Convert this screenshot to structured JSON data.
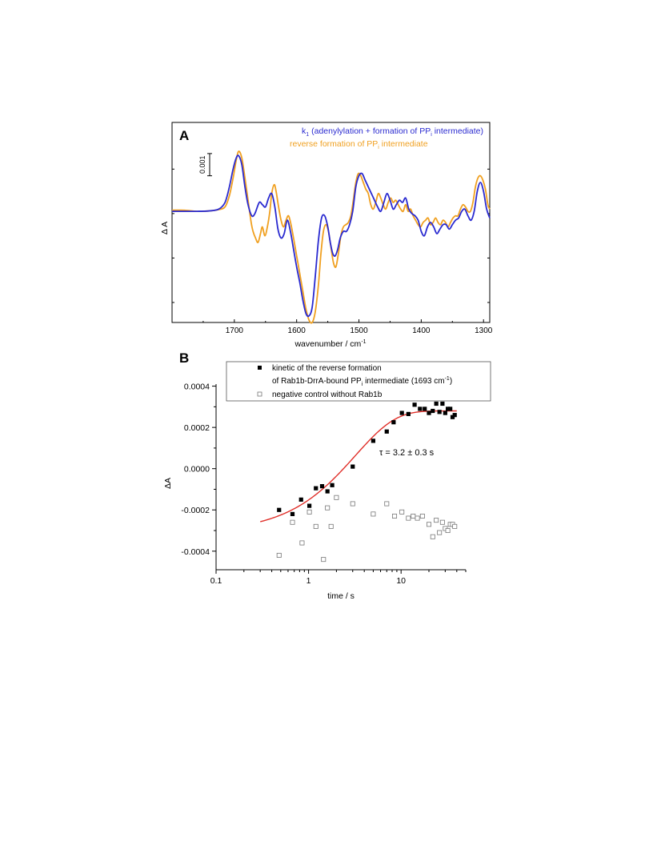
{
  "chart_data": [
    {
      "panel_label": "A",
      "type": "line",
      "xlabel": "wavenumber / cm",
      "xlabel_sup": "-1",
      "ylabel": "Δ A",
      "xlim": [
        1800,
        1290
      ],
      "x_reversed": true,
      "ylim": [
        -0.0049,
        0.0041
      ],
      "xticks": [
        1700,
        1600,
        1500,
        1400,
        1300
      ],
      "scale_bar": {
        "label": "0.001",
        "value": 0.001,
        "from": 0.0027,
        "to": 0.0017
      },
      "legend_position": "top-right",
      "legend": [
        {
          "text": "k",
          "sub": "1",
          "rest": " (adenylylation + formation of PP",
          "sub2": "i",
          "rest2": " intermediate)",
          "color": "#2a2ad0"
        },
        {
          "text": "reverse formation of PP",
          "sub": "i",
          "rest": " intermediate",
          "color": "#f0a020"
        }
      ],
      "series": [
        {
          "color": "#2a2ad0",
          "x": [
            1800,
            1780,
            1760,
            1740,
            1725,
            1715,
            1708,
            1702,
            1697,
            1693,
            1688,
            1683,
            1678,
            1672,
            1667,
            1660,
            1655,
            1650,
            1645,
            1640,
            1635,
            1630,
            1625,
            1620,
            1615,
            1610,
            1605,
            1600,
            1595,
            1590,
            1585,
            1580,
            1575,
            1570,
            1565,
            1560,
            1555,
            1550,
            1546,
            1542,
            1538,
            1534,
            1530,
            1525,
            1520,
            1515,
            1510,
            1505,
            1500,
            1495,
            1490,
            1485,
            1480,
            1475,
            1470,
            1465,
            1460,
            1455,
            1450,
            1445,
            1440,
            1435,
            1430,
            1425,
            1420,
            1415,
            1410,
            1405,
            1400,
            1395,
            1390,
            1385,
            1380,
            1375,
            1370,
            1365,
            1360,
            1355,
            1350,
            1345,
            1340,
            1335,
            1330,
            1325,
            1320,
            1315,
            1310,
            1305,
            1300,
            1295,
            1290
          ],
          "y": [
            0.0001,
            0.0001,
            0.0001,
            0.00012,
            0.0002,
            0.0005,
            0.0012,
            0.002,
            0.0025,
            0.0026,
            0.0022,
            0.0012,
            0.0004,
            -0.0001,
            0,
            0.0005,
            0.0004,
            0.0003,
            0.0007,
            0.0009,
            0.0003,
            -0.0007,
            -0.0011,
            -0.0009,
            -0.0003,
            -0.0008,
            -0.0016,
            -0.0024,
            -0.0031,
            -0.0039,
            -0.0045,
            -0.0046,
            -0.0042,
            -0.0028,
            -0.0012,
            -0.0002,
            -0.0001,
            -0.0006,
            -0.0013,
            -0.0018,
            -0.0019,
            -0.0016,
            -0.0011,
            -0.0008,
            -0.0008,
            -0.0005,
            0.0001,
            0.0012,
            0.0017,
            0.0018,
            0.0015,
            0.0012,
            0.0009,
            0.0006,
            0.0003,
            0.0001,
            0.0005,
            0.0009,
            0.0006,
            0.0002,
            0.0004,
            0.0006,
            0.0005,
            0.0007,
            0.0002,
            0,
            -0.0001,
            -0.0003,
            -0.0008,
            -0.001,
            -0.0006,
            -0.0004,
            -0.0006,
            -0.0009,
            -0.0007,
            -0.0005,
            -0.0005,
            -0.0007,
            -0.0005,
            -0.0003,
            -0.0002,
            0.0001,
            0.0002,
            -0.0001,
            -0.0003,
            0.0001,
            0.001,
            0.0014,
            0.001,
            0.0002,
            -0.0002
          ]
        },
        {
          "color": "#f0a020",
          "x": [
            1800,
            1780,
            1760,
            1740,
            1725,
            1715,
            1708,
            1702,
            1697,
            1693,
            1688,
            1683,
            1678,
            1673,
            1670,
            1666,
            1662,
            1658,
            1655,
            1651,
            1647,
            1643,
            1640,
            1636,
            1633,
            1629,
            1625,
            1621,
            1617,
            1613,
            1609,
            1605,
            1600,
            1595,
            1590,
            1585,
            1580,
            1575,
            1570,
            1565,
            1561,
            1557,
            1553,
            1549,
            1545,
            1541,
            1537,
            1533,
            1529,
            1525,
            1521,
            1517,
            1513,
            1509,
            1505,
            1501,
            1497,
            1493,
            1489,
            1485,
            1481,
            1477,
            1473,
            1469,
            1465,
            1461,
            1457,
            1453,
            1449,
            1445,
            1441,
            1437,
            1433,
            1429,
            1425,
            1421,
            1417,
            1413,
            1409,
            1405,
            1401,
            1397,
            1393,
            1389,
            1385,
            1381,
            1377,
            1373,
            1369,
            1365,
            1361,
            1357,
            1353,
            1349,
            1345,
            1341,
            1337,
            1333,
            1329,
            1325,
            1321,
            1317,
            1313,
            1309,
            1305,
            1301,
            1297,
            1293,
            1290
          ],
          "y": [
            0.00015,
            0.00015,
            0.0001,
            0.00012,
            0.00018,
            0.0003,
            0.0008,
            0.0016,
            0.0024,
            0.0028,
            0.0025,
            0.0016,
            0.0006,
            -0.0004,
            -0.0008,
            -0.0011,
            -0.0013,
            -0.0009,
            -0.0006,
            -0.001,
            -0.0006,
            0.0001,
            0.0009,
            0.0013,
            0.001,
            0.0003,
            -0.0003,
            -0.0006,
            -0.0003,
            -0.0001,
            -0.0005,
            -0.0011,
            -0.0019,
            -0.0027,
            -0.0035,
            -0.0043,
            -0.0048,
            -0.0049,
            -0.0044,
            -0.0032,
            -0.0018,
            -0.0008,
            -0.0005,
            -0.0008,
            -0.0015,
            -0.0022,
            -0.0024,
            -0.0018,
            -0.001,
            -0.0006,
            -0.0005,
            -0.0004,
            -0.0001,
            0.0006,
            0.0014,
            0.0018,
            0.0017,
            0.0014,
            0.0011,
            0.0009,
            0.0004,
            0.0002,
            0.0005,
            0.0009,
            0.0007,
            0.0004,
            0.0002,
            0.0005,
            0.0007,
            0.0005,
            0.0006,
            0.0004,
            0.0002,
            0.0001,
            0.0004,
            0.0001,
            0.0002,
            -0.0001,
            -0.0003,
            -0.0005,
            -0.0006,
            -0.0004,
            -0.0003,
            -0.0002,
            -0.0005,
            -0.0004,
            -0.0002,
            -0.0004,
            -0.0005,
            -0.0003,
            -0.0004,
            -0.0006,
            -0.0004,
            -0.0002,
            -0.0001,
            -0.0001,
            0.0002,
            0.0004,
            0.0003,
            0.0001,
            0.0001,
            0.0005,
            0.0012,
            0.0016,
            0.0017,
            0.0015,
            0.0011,
            0.0004,
            0.0002
          ]
        }
      ]
    },
    {
      "panel_label": "B",
      "type": "scatter",
      "xlabel": "time / s",
      "ylabel": "ΔA",
      "x_scale": "log",
      "xlim": [
        0.1,
        50
      ],
      "ylim": [
        -0.00049,
        0.00041
      ],
      "xticks": [
        {
          "v": 0.1,
          "label": "0.1"
        },
        {
          "v": 1,
          "label": "1"
        },
        {
          "v": 10,
          "label": "10"
        }
      ],
      "yticks": [
        {
          "v": 0.0004,
          "label": "0.0004"
        },
        {
          "v": 0.0002,
          "label": "0.0002"
        },
        {
          "v": 0,
          "label": "0.0000"
        },
        {
          "v": -0.0002,
          "label": "-0.0002"
        },
        {
          "v": -0.0004,
          "label": "-0.0004"
        }
      ],
      "annotation": "τ = 3.2 ± 0.3 s",
      "legend_position": "top-right",
      "legend": [
        {
          "line1": "kinetic of the reverse formation",
          "line2_pre": "of  Rab1b-DrrA-bound PP",
          "line2_sub": "i",
          "line2_mid": " intermediate (1693 cm",
          "line2_sup": "-1",
          "line2_post": ")",
          "marker": "filled-square"
        },
        {
          "line1": "negative control without Rab1b",
          "marker": "open-square"
        }
      ],
      "series": [
        {
          "marker": "filled-square",
          "color": "#000000",
          "x": [
            0.48,
            0.67,
            0.83,
            1.02,
            1.2,
            1.4,
            1.6,
            1.8,
            3.0,
            5.0,
            7.0,
            8.3,
            10.2,
            12,
            14,
            16,
            18,
            20,
            22,
            24,
            26,
            28,
            30,
            32,
            34,
            36,
            38
          ],
          "y": [
            -0.0002,
            -0.00022,
            -0.00015,
            -0.00018,
            -9.5e-05,
            -8.5e-05,
            -0.00011,
            -8e-05,
            1e-05,
            0.000135,
            0.00018,
            0.000225,
            0.00027,
            0.000265,
            0.00031,
            0.00029,
            0.00029,
            0.00027,
            0.00028,
            0.000315,
            0.000275,
            0.000315,
            0.00027,
            0.00029,
            0.00029,
            0.00025,
            0.00026
          ]
        },
        {
          "marker": "open-square",
          "color": "#777777",
          "x": [
            0.48,
            0.67,
            0.85,
            1.02,
            1.2,
            1.45,
            1.6,
            1.75,
            2.0,
            3.0,
            5.0,
            7.0,
            8.5,
            10.2,
            12,
            13.5,
            15,
            17,
            20,
            22,
            24,
            26,
            28,
            30,
            32,
            34,
            36,
            38
          ],
          "y": [
            -0.00042,
            -0.00026,
            -0.00036,
            -0.00021,
            -0.00028,
            -0.00044,
            -0.00019,
            -0.00028,
            -0.00014,
            -0.00017,
            -0.00022,
            -0.00017,
            -0.00023,
            -0.00021,
            -0.00024,
            -0.00023,
            -0.00024,
            -0.00023,
            -0.00027,
            -0.00033,
            -0.00025,
            -0.00031,
            -0.00026,
            -0.00029,
            -0.0003,
            -0.00027,
            -0.00027,
            -0.00028
          ]
        }
      ],
      "fit": {
        "color": "#e0302a",
        "model": "A0 + A1*(1 - exp(-t/tau))",
        "tau": 3.2,
        "A0": -0.00031,
        "A1": 0.00059,
        "t_range": [
          0.3,
          40
        ]
      }
    }
  ]
}
